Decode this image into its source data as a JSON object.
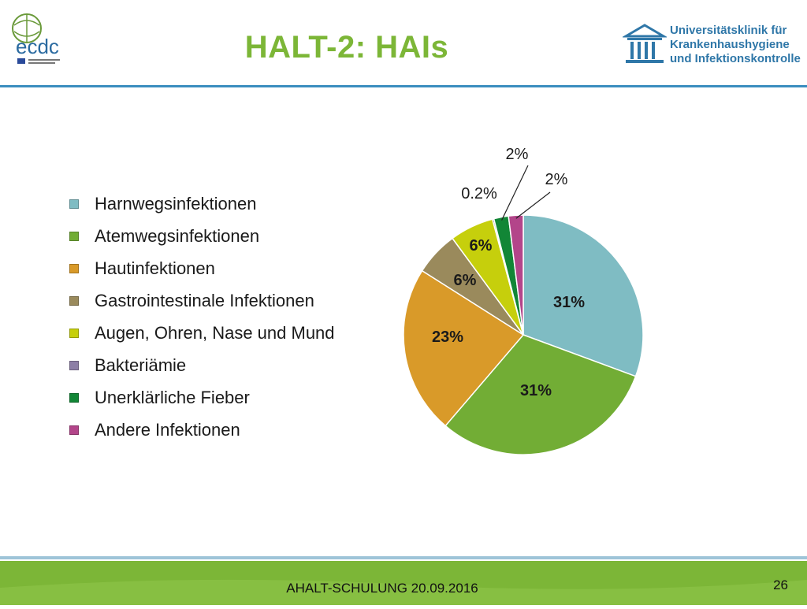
{
  "header": {
    "title": "HALT-2: HAIs"
  },
  "logos": {
    "ecdc_text": "ecdc",
    "uni_lines": [
      "Universitätsklinik für",
      "Krankenhaushygiene",
      "und Infektionskontrolle"
    ]
  },
  "footer": {
    "text": "AHALT-SCHULUNG 20.09.2016",
    "page": "26"
  },
  "colors": {
    "title": "#7cb637",
    "header_line": "#3a8dbf",
    "footer": "#7cb637"
  },
  "chart_data": {
    "type": "pie",
    "title": "",
    "legend_position": "left",
    "series": [
      {
        "name": "Harnwegsinfektionen",
        "value": 31,
        "label": "31%",
        "color": "#7fbcc3"
      },
      {
        "name": "Atemwegsinfektionen",
        "value": 31,
        "label": "31%",
        "color": "#72ad35"
      },
      {
        "name": "Hautinfektionen",
        "value": 23,
        "label": "23%",
        "color": "#d99a29"
      },
      {
        "name": "Gastrointestinale Infektionen",
        "value": 6,
        "label": "6%",
        "color": "#9a8a5c"
      },
      {
        "name": "Augen, Ohren, Nase und Mund",
        "value": 6,
        "label": "6%",
        "color": "#c6cf0c"
      },
      {
        "name": "Bakteriämie",
        "value": 0.2,
        "label": "0.2%",
        "color": "#8c7ea6"
      },
      {
        "name": "Unerklärliche Fieber",
        "value": 2,
        "label": "2%",
        "color": "#128636"
      },
      {
        "name": "Andere Infektionen",
        "value": 2,
        "label": "2%",
        "color": "#b3458a"
      }
    ]
  }
}
